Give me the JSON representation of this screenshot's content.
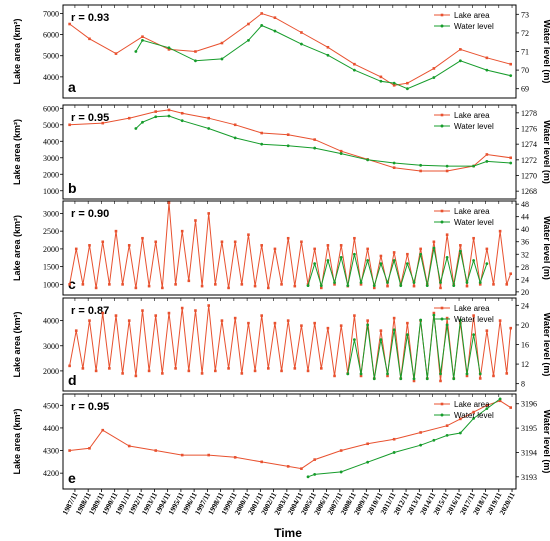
{
  "colors": {
    "lake": "#e8512f",
    "water": "#169c2b"
  },
  "figure": {
    "xlabel": "Time",
    "x_ticks": [
      "1987/11",
      "1988/11",
      "1989/11",
      "1990/11",
      "1991/11",
      "1992/11",
      "1993/11",
      "1994/11",
      "1995/11",
      "1996/11",
      "1997/11",
      "1998/11",
      "1999/11",
      "2000/11",
      "2001/11",
      "2002/11",
      "2003/11",
      "2004/11",
      "2005/11",
      "2006/11",
      "2007/11",
      "2008/11",
      "2009/11",
      "2010/11",
      "2011/11",
      "2012/11",
      "2013/11",
      "2014/11",
      "2015/11",
      "2016/11",
      "2017/11",
      "2018/11",
      "2019/11",
      "2020/11"
    ]
  },
  "chart_data": [
    {
      "type": "line",
      "panel": "a",
      "r": "r = 0.93",
      "ylabel_left": "Lake area (km²)",
      "ylabel_right": "Water level (m)",
      "legend": [
        "Lake area",
        "Water level"
      ],
      "left_ticks": [
        4000,
        5000,
        6000,
        7000
      ],
      "left_lim": [
        3000,
        7400
      ],
      "right_ticks": [
        69,
        70,
        71,
        72,
        73
      ],
      "right_lim": [
        68.5,
        73.5
      ],
      "series": [
        {
          "name": "Lake area",
          "axis": "left",
          "x": [
            1987.5,
            1989,
            1991,
            1993,
            1995,
            1997,
            1999,
            2001,
            2002,
            2003,
            2005,
            2007,
            2009,
            2011,
            2012,
            2013,
            2015,
            2017,
            2019,
            2020.8
          ],
          "values": [
            6500,
            5800,
            5100,
            5900,
            5300,
            5200,
            5600,
            6500,
            7000,
            6800,
            6100,
            5400,
            4600,
            4000,
            3600,
            3700,
            4400,
            5300,
            4900,
            4600
          ]
        },
        {
          "name": "Water level",
          "axis": "right",
          "x": [
            1992.5,
            1993,
            1995,
            1997,
            1999,
            2001,
            2002,
            2003,
            2005,
            2007,
            2009,
            2011,
            2012,
            2013,
            2015,
            2017,
            2019,
            2020.8
          ],
          "values": [
            71.0,
            71.6,
            71.2,
            70.5,
            70.6,
            71.6,
            72.4,
            72.1,
            71.4,
            70.8,
            70.0,
            69.4,
            69.3,
            69.0,
            69.6,
            70.5,
            70.0,
            69.7
          ]
        }
      ]
    },
    {
      "type": "line",
      "panel": "b",
      "r": "r = 0.95",
      "ylabel_left": "Lake area (km²)",
      "ylabel_right": "Water level (m)",
      "legend": [
        "Lake area",
        "Water level"
      ],
      "left_ticks": [
        1000,
        2000,
        3000,
        4000,
        5000,
        6000
      ],
      "left_lim": [
        500,
        6200
      ],
      "right_ticks": [
        1268,
        1270,
        1272,
        1274,
        1276,
        1278
      ],
      "right_lim": [
        1267,
        1279
      ],
      "series": [
        {
          "name": "Lake area",
          "axis": "left",
          "x": [
            1987.5,
            1990,
            1992,
            1994,
            1995,
            1996,
            1998,
            2000,
            2002,
            2004,
            2006,
            2008,
            2010,
            2012,
            2014,
            2016,
            2018,
            2019,
            2020.8
          ],
          "values": [
            5000,
            5100,
            5400,
            5800,
            5900,
            5700,
            5400,
            5000,
            4500,
            4400,
            4100,
            3400,
            2900,
            2400,
            2200,
            2200,
            2500,
            3200,
            3000
          ]
        },
        {
          "name": "Water level",
          "axis": "right",
          "x": [
            1992.5,
            1993,
            1994,
            1995,
            1996,
            1998,
            2000,
            2002,
            2004,
            2006,
            2008,
            2010,
            2012,
            2014,
            2016,
            2018,
            2019,
            2020.8
          ],
          "values": [
            1276.0,
            1276.8,
            1277.5,
            1277.6,
            1277.0,
            1276.0,
            1274.8,
            1274.0,
            1273.8,
            1273.5,
            1272.8,
            1272.0,
            1271.6,
            1271.3,
            1271.2,
            1271.2,
            1271.8,
            1271.6
          ]
        }
      ]
    },
    {
      "type": "line",
      "panel": "c",
      "r": "r = 0.90",
      "ylabel_left": "Lake area (km²)",
      "ylabel_right": "Water level (m)",
      "legend": [
        "Lake area",
        "Water level"
      ],
      "left_ticks": [
        1000,
        1500,
        2000,
        2500,
        3000
      ],
      "left_lim": [
        700,
        3350
      ],
      "right_ticks": [
        20,
        24,
        28,
        32,
        36,
        40,
        44,
        48
      ],
      "right_lim": [
        19,
        49
      ],
      "series": [
        {
          "name": "Lake area",
          "axis": "left",
          "x": [
            1987.5,
            1988,
            1988.5,
            1989,
            1989.5,
            1990,
            1990.5,
            1991,
            1991.5,
            1992,
            1992.5,
            1993,
            1993.5,
            1994,
            1994.5,
            1995,
            1995.5,
            1996,
            1996.5,
            1997,
            1997.5,
            1998,
            1998.5,
            1999,
            1999.5,
            2000,
            2000.5,
            2001,
            2001.5,
            2002,
            2002.5,
            2003,
            2003.5,
            2004,
            2004.5,
            2005,
            2005.5,
            2006,
            2006.5,
            2007,
            2007.5,
            2008,
            2008.5,
            2009,
            2009.5,
            2010,
            2010.5,
            2011,
            2011.5,
            2012,
            2012.5,
            2013,
            2013.5,
            2014,
            2014.5,
            2015,
            2015.5,
            2016,
            2016.5,
            2017,
            2017.5,
            2018,
            2018.5,
            2019,
            2019.5,
            2020,
            2020.5,
            2020.8
          ],
          "values": [
            1000,
            2000,
            1000,
            2100,
            900,
            2200,
            1000,
            2500,
            1000,
            2100,
            900,
            2300,
            950,
            2200,
            900,
            3300,
            1000,
            2500,
            1100,
            2800,
            950,
            3000,
            1000,
            2200,
            900,
            2200,
            1000,
            2400,
            950,
            2100,
            900,
            2000,
            1000,
            2300,
            950,
            2200,
            1000,
            2000,
            900,
            2100,
            1000,
            2100,
            950,
            2300,
            1000,
            2000,
            900,
            1800,
            950,
            1900,
            1000,
            1850,
            950,
            2000,
            1000,
            2200,
            900,
            2400,
            1000,
            2100,
            950,
            2300,
            1000,
            2000,
            1000,
            2500,
            1000,
            1300
          ]
        },
        {
          "name": "Water level",
          "axis": "right",
          "x": [
            2005.5,
            2006,
            2006.5,
            2007,
            2007.5,
            2008,
            2008.5,
            2009,
            2009.5,
            2010,
            2010.5,
            2011,
            2011.5,
            2012,
            2012.5,
            2013,
            2013.5,
            2014,
            2014.5,
            2015,
            2015.5,
            2016,
            2016.5,
            2017,
            2017.5,
            2018,
            2018.5,
            2019
          ],
          "values": [
            22,
            29,
            22,
            30,
            23,
            31,
            22,
            32,
            23,
            30,
            22,
            29,
            23,
            30,
            22,
            29,
            23,
            32,
            22,
            34,
            23,
            31,
            22,
            33,
            23,
            30,
            23,
            29
          ]
        }
      ]
    },
    {
      "type": "line",
      "panel": "d",
      "r": "r = 0.87",
      "ylabel_left": "Lake area (km²)",
      "ylabel_right": "Water level (m)",
      "legend": [
        "Lake area",
        "Water level"
      ],
      "left_ticks": [
        2000,
        3000,
        4000
      ],
      "left_lim": [
        1200,
        4900
      ],
      "right_ticks": [
        8,
        12,
        16,
        20,
        24
      ],
      "right_lim": [
        6.5,
        25.5
      ],
      "series": [
        {
          "name": "Lake area",
          "axis": "left",
          "x": [
            1987.5,
            1988,
            1988.5,
            1989,
            1989.5,
            1990,
            1990.5,
            1991,
            1991.5,
            1992,
            1992.5,
            1993,
            1993.5,
            1994,
            1994.5,
            1995,
            1995.5,
            1996,
            1996.5,
            1997,
            1997.5,
            1998,
            1998.5,
            1999,
            1999.5,
            2000,
            2000.5,
            2001,
            2001.5,
            2002,
            2002.5,
            2003,
            2003.5,
            2004,
            2004.5,
            2005,
            2005.5,
            2006,
            2006.5,
            2007,
            2007.5,
            2008,
            2008.5,
            2009,
            2009.5,
            2010,
            2010.5,
            2011,
            2011.5,
            2012,
            2012.5,
            2013,
            2013.5,
            2014,
            2014.5,
            2015,
            2015.5,
            2016,
            2016.5,
            2017,
            2017.5,
            2018,
            2018.5,
            2019,
            2019.5,
            2020,
            2020.5,
            2020.8
          ],
          "values": [
            2200,
            3600,
            2100,
            4000,
            2000,
            4300,
            2100,
            4200,
            1900,
            4000,
            1800,
            4400,
            2000,
            4200,
            1900,
            4300,
            2100,
            4500,
            2000,
            4400,
            1900,
            4600,
            2000,
            4000,
            2100,
            4100,
            1900,
            3900,
            2000,
            4200,
            2100,
            3900,
            2000,
            4000,
            2100,
            3800,
            2000,
            3900,
            2100,
            3700,
            1800,
            3800,
            1900,
            4200,
            1800,
            4000,
            1700,
            3600,
            1800,
            4100,
            1700,
            3900,
            1600,
            4000,
            1700,
            4300,
            1600,
            4100,
            1700,
            3900,
            1800,
            4200,
            1700,
            3600,
            1800,
            4000,
            1900,
            3700
          ]
        },
        {
          "name": "Water level",
          "axis": "right",
          "x": [
            2008.5,
            2009,
            2009.5,
            2010,
            2010.5,
            2011,
            2011.5,
            2012,
            2012.5,
            2013,
            2013.5,
            2014,
            2014.5,
            2015,
            2015.5,
            2016,
            2016.5,
            2017,
            2017.5,
            2018,
            2018.5
          ],
          "values": [
            10,
            17,
            10,
            20,
            9,
            17,
            10,
            19,
            9,
            18,
            9,
            21,
            9,
            22,
            10,
            20,
            9,
            21,
            10,
            18,
            10
          ]
        }
      ]
    },
    {
      "type": "line",
      "panel": "e",
      "r": "r = 0.95",
      "ylabel_left": "Lake area (km²)",
      "ylabel_right": "Water level (m)",
      "legend": [
        "Lake area",
        "Water level"
      ],
      "left_ticks": [
        4200,
        4300,
        4400,
        4500
      ],
      "left_lim": [
        4130,
        4550
      ],
      "right_ticks": [
        3193,
        3194,
        3195,
        3196
      ],
      "right_lim": [
        3192.5,
        3196.4
      ],
      "series": [
        {
          "name": "Lake area",
          "axis": "left",
          "x": [
            1987.5,
            1989,
            1990,
            1992,
            1994,
            1996,
            1998,
            2000,
            2002,
            2004,
            2005,
            2006,
            2008,
            2010,
            2012,
            2014,
            2016,
            2017,
            2018,
            2019,
            2020,
            2020.8
          ],
          "values": [
            4300,
            4310,
            4390,
            4320,
            4300,
            4280,
            4280,
            4270,
            4250,
            4230,
            4220,
            4260,
            4300,
            4330,
            4350,
            4380,
            4410,
            4440,
            4470,
            4500,
            4520,
            4490
          ]
        },
        {
          "name": "Water level",
          "axis": "right",
          "x": [
            2005.5,
            2006,
            2008,
            2010,
            2012,
            2014,
            2015,
            2016,
            2017,
            2018,
            2019,
            2020
          ],
          "values": [
            3193.0,
            3193.1,
            3193.2,
            3193.6,
            3194.0,
            3194.3,
            3194.5,
            3194.7,
            3194.8,
            3195.4,
            3195.8,
            3196.2
          ]
        }
      ]
    }
  ]
}
